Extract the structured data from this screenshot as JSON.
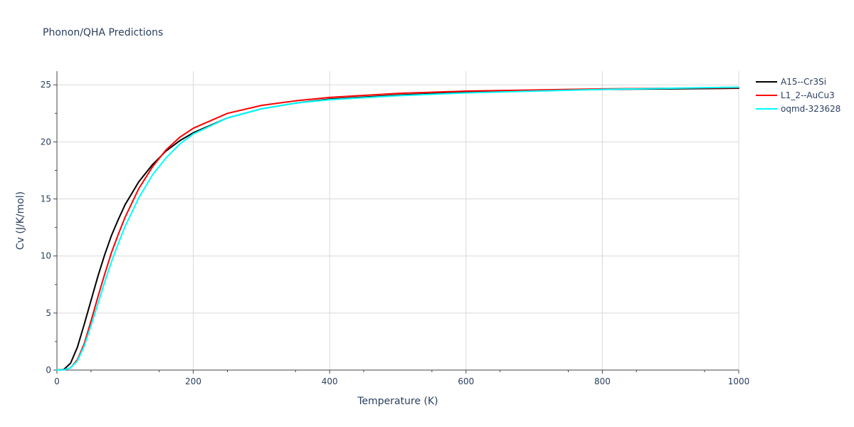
{
  "chart_data": {
    "type": "line",
    "title": "Phonon/QHA Predictions",
    "xlabel": "Temperature (K)",
    "ylabel": "Cv (J/K/mol)",
    "xlim": [
      0,
      1000
    ],
    "ylim": [
      0,
      26.2
    ],
    "x_ticks": [
      0,
      200,
      400,
      600,
      800,
      1000
    ],
    "x_tick_labels": [
      "0",
      "200",
      "400",
      "600",
      "800",
      "1000"
    ],
    "y_ticks": [
      0,
      5,
      10,
      15,
      20,
      25
    ],
    "y_tick_labels": [
      "0",
      "5",
      "10",
      "15",
      "20",
      "25"
    ],
    "grid": true,
    "legend_position": "top-right",
    "series": [
      {
        "name": "A15--Cr3Si",
        "color": "#000000",
        "x": [
          0,
          10,
          20,
          30,
          40,
          50,
          60,
          70,
          80,
          90,
          100,
          120,
          140,
          160,
          180,
          200,
          250,
          300,
          350,
          400,
          500,
          600,
          700,
          800,
          900,
          1000
        ],
        "y": [
          0,
          0.05,
          0.6,
          2.0,
          4.0,
          6.1,
          8.2,
          10.1,
          11.8,
          13.2,
          14.5,
          16.5,
          18.0,
          19.2,
          20.1,
          20.8,
          22.1,
          22.9,
          23.4,
          23.75,
          24.1,
          24.35,
          24.5,
          24.6,
          24.65,
          24.7
        ]
      },
      {
        "name": "L1_2--AuCu3",
        "color": "#ff0000",
        "x": [
          0,
          10,
          20,
          30,
          40,
          50,
          60,
          70,
          80,
          90,
          100,
          120,
          140,
          160,
          180,
          200,
          250,
          300,
          350,
          400,
          500,
          600,
          700,
          800,
          900,
          1000
        ],
        "y": [
          0,
          0.02,
          0.2,
          0.9,
          2.3,
          4.3,
          6.4,
          8.4,
          10.3,
          11.9,
          13.4,
          15.9,
          17.8,
          19.3,
          20.4,
          21.2,
          22.5,
          23.2,
          23.6,
          23.9,
          24.25,
          24.45,
          24.55,
          24.65,
          24.7,
          24.75
        ]
      },
      {
        "name": "oqmd-323628",
        "color": "#00ffff",
        "x": [
          0,
          10,
          20,
          30,
          40,
          50,
          60,
          70,
          80,
          90,
          100,
          120,
          140,
          160,
          180,
          200,
          250,
          300,
          350,
          400,
          500,
          600,
          700,
          800,
          900,
          1000
        ],
        "y": [
          0,
          0.02,
          0.2,
          0.8,
          2.1,
          3.9,
          5.8,
          7.7,
          9.5,
          11.1,
          12.6,
          15.1,
          17.1,
          18.6,
          19.8,
          20.7,
          22.1,
          22.9,
          23.4,
          23.7,
          24.05,
          24.3,
          24.45,
          24.6,
          24.7,
          24.8
        ]
      }
    ]
  }
}
